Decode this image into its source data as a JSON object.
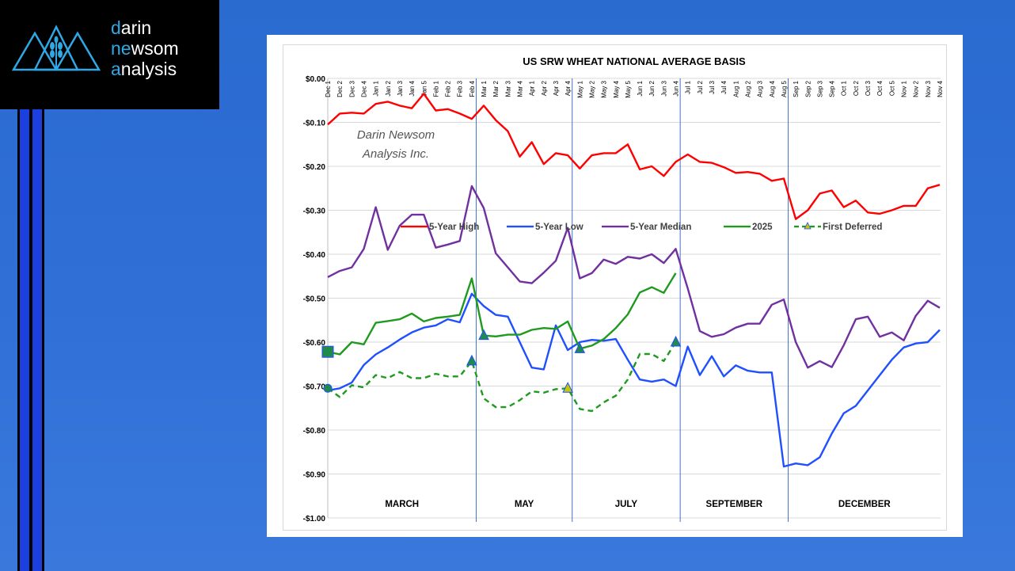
{
  "brand": {
    "line1_accent": "d",
    "line1_rest": "arin",
    "line2_accent": "ne",
    "line2_mid": "w",
    "line2_rest": "som",
    "line3_accent": "a",
    "line3_rest": "nalysis"
  },
  "colors": {
    "background": "#2f6fd6",
    "high": "#ff0000",
    "low": "#1f4fff",
    "median": "#7030a0",
    "y2025": "#1f9a1f",
    "deferred": "#1f9a1f"
  },
  "chart_data": {
    "type": "line",
    "title": "US SRW WHEAT NATIONAL AVERAGE BASIS",
    "watermark": [
      "Darin Newsom",
      "Analysis Inc."
    ],
    "ylim": [
      -1.0,
      0.0
    ],
    "yticks": [
      "$0.00",
      "-$0.10",
      "-$0.20",
      "-$0.30",
      "-$0.40",
      "-$0.50",
      "-$0.60",
      "-$0.70",
      "-$0.80",
      "-$0.90",
      "-$1.00"
    ],
    "ytick_values": [
      0,
      -0.1,
      -0.2,
      -0.3,
      -0.4,
      -0.5,
      -0.6,
      -0.7,
      -0.8,
      -0.9,
      -1.0
    ],
    "categories": [
      "Dec 1",
      "Dec 2",
      "Dec 3",
      "Dec 4",
      "Jan 1",
      "Jan 2",
      "Jan 3",
      "Jan 4",
      "Jan 5",
      "Feb 1",
      "Feb 2",
      "Feb 3",
      "Feb 4",
      "Mar 1",
      "Mar 2",
      "Mar 3",
      "Mar 4",
      "Apr 1",
      "Apr 2",
      "Apr 3",
      "Apr 4",
      "May 1",
      "May 2",
      "May 3",
      "May 4",
      "May 5",
      "Jun 1",
      "Jun 2",
      "Jun 3",
      "Jun 4",
      "Jul 1",
      "Jul 2",
      "Jul 3",
      "Jul 4",
      "Aug 1",
      "Aug 2",
      "Aug 3",
      "Aug 4",
      "Aug 5",
      "Sep 1",
      "Sep 2",
      "Sep 3",
      "Sep 4",
      "Oct 1",
      "Oct 2",
      "Oct 3",
      "Oct 4",
      "Oct 5",
      "Nov 1",
      "Nov 2",
      "Nov 3",
      "Nov 4"
    ],
    "series": [
      {
        "name": "5-Year High",
        "color": "#ff0000",
        "style": "solid",
        "values": [
          -0.105,
          -0.08,
          -0.078,
          -0.08,
          -0.058,
          -0.053,
          -0.062,
          -0.068,
          -0.035,
          -0.073,
          -0.07,
          -0.08,
          -0.092,
          -0.062,
          -0.095,
          -0.12,
          -0.178,
          -0.145,
          -0.195,
          -0.17,
          -0.175,
          -0.205,
          -0.175,
          -0.17,
          -0.17,
          -0.15,
          -0.207,
          -0.2,
          -0.222,
          -0.19,
          -0.173,
          -0.19,
          -0.192,
          -0.202,
          -0.215,
          -0.213,
          -0.217,
          -0.233,
          -0.228,
          -0.32,
          -0.3,
          -0.262,
          -0.255,
          -0.293,
          -0.278,
          -0.305,
          -0.308,
          -0.3,
          -0.29,
          -0.29,
          -0.25,
          -0.242
        ]
      },
      {
        "name": "5-Year Low",
        "color": "#1f4fff",
        "style": "solid",
        "values": [
          -0.71,
          -0.705,
          -0.692,
          -0.652,
          -0.628,
          -0.612,
          -0.594,
          -0.578,
          -0.567,
          -0.562,
          -0.548,
          -0.555,
          -0.49,
          -0.518,
          -0.538,
          -0.542,
          -0.6,
          -0.658,
          -0.662,
          -0.562,
          -0.618,
          -0.6,
          -0.595,
          -0.597,
          -0.593,
          -0.64,
          -0.685,
          -0.69,
          -0.685,
          -0.7,
          -0.61,
          -0.675,
          -0.632,
          -0.678,
          -0.653,
          -0.665,
          -0.669,
          -0.669,
          -0.883,
          -0.876,
          -0.88,
          -0.862,
          -0.808,
          -0.762,
          -0.745,
          -0.71,
          -0.675,
          -0.64,
          -0.612,
          -0.603,
          -0.6,
          -0.572
        ]
      },
      {
        "name": "5-Year Median",
        "color": "#7030a0",
        "style": "solid",
        "values": [
          -0.452,
          -0.438,
          -0.43,
          -0.388,
          -0.293,
          -0.39,
          -0.335,
          -0.31,
          -0.31,
          -0.385,
          -0.378,
          -0.37,
          -0.245,
          -0.295,
          -0.398,
          -0.43,
          -0.462,
          -0.466,
          -0.442,
          -0.415,
          -0.34,
          -0.455,
          -0.443,
          -0.412,
          -0.422,
          -0.406,
          -0.41,
          -0.4,
          -0.42,
          -0.388,
          -0.478,
          -0.575,
          -0.588,
          -0.582,
          -0.567,
          -0.558,
          -0.558,
          -0.515,
          -0.503,
          -0.6,
          -0.658,
          -0.643,
          -0.657,
          -0.607,
          -0.548,
          -0.542,
          -0.588,
          -0.578,
          -0.596,
          -0.54,
          -0.506,
          -0.522
        ]
      },
      {
        "name": "2025",
        "color": "#1f9a1f",
        "style": "solid",
        "values": [
          -0.622,
          -0.628,
          -0.6,
          -0.605,
          -0.556,
          -0.552,
          -0.548,
          -0.535,
          -0.553,
          -0.545,
          -0.542,
          -0.538,
          -0.455,
          -0.585,
          -0.587,
          -0.583,
          -0.583,
          -0.572,
          -0.568,
          -0.57,
          -0.553,
          -0.615,
          -0.608,
          -0.593,
          -0.568,
          -0.537,
          -0.487,
          -0.475,
          -0.488,
          -0.443,
          null,
          null,
          null,
          null,
          null,
          null,
          null,
          null,
          null,
          null,
          null,
          null,
          null,
          null,
          null,
          null,
          null,
          null,
          null,
          null,
          null,
          null
        ]
      },
      {
        "name": "First Deferred",
        "color": "#1f9a1f",
        "style": "dashed",
        "values": [
          -0.705,
          -0.725,
          -0.698,
          -0.703,
          -0.675,
          -0.682,
          -0.668,
          -0.682,
          -0.682,
          -0.672,
          -0.678,
          -0.678,
          -0.643,
          -0.728,
          -0.748,
          -0.748,
          -0.732,
          -0.712,
          -0.715,
          -0.707,
          -0.705,
          -0.752,
          -0.757,
          -0.737,
          -0.722,
          -0.685,
          -0.627,
          -0.627,
          -0.643,
          -0.6,
          null,
          null,
          null,
          null,
          null,
          null,
          null,
          null,
          null,
          null,
          null,
          null,
          null,
          null,
          null,
          null,
          null,
          null,
          null,
          null,
          null,
          null
        ]
      }
    ],
    "markers": [
      {
        "type": "square",
        "x": "Dec 1",
        "y": -0.622,
        "color": "#1f8a4c"
      },
      {
        "type": "circle",
        "x": "Dec 1",
        "y": -0.705,
        "color": "#1f8a4c"
      },
      {
        "type": "triangle",
        "x": "Feb 4",
        "y": -0.643,
        "color": "#1f8a4c"
      },
      {
        "type": "triangle",
        "x": "Mar 1",
        "y": -0.585,
        "color": "#1f8a4c"
      },
      {
        "type": "triangle",
        "x": "Apr 4",
        "y": -0.705,
        "color": "#c8c800"
      },
      {
        "type": "triangle",
        "x": "May 1",
        "y": -0.615,
        "color": "#1f8a4c"
      },
      {
        "type": "triangle",
        "x": "Jun 4",
        "y": -0.6,
        "color": "#1f8a4c"
      }
    ],
    "dividers_after": [
      "Feb 4",
      "Apr 4",
      "Jun 4",
      "Aug 5"
    ],
    "contract_labels": [
      "MARCH",
      "MAY",
      "JULY",
      "SEPTEMBER",
      "DECEMBER"
    ],
    "legend": [
      "5-Year High",
      "5-Year Low",
      "5-Year Median",
      "2025",
      "First Deferred"
    ]
  }
}
